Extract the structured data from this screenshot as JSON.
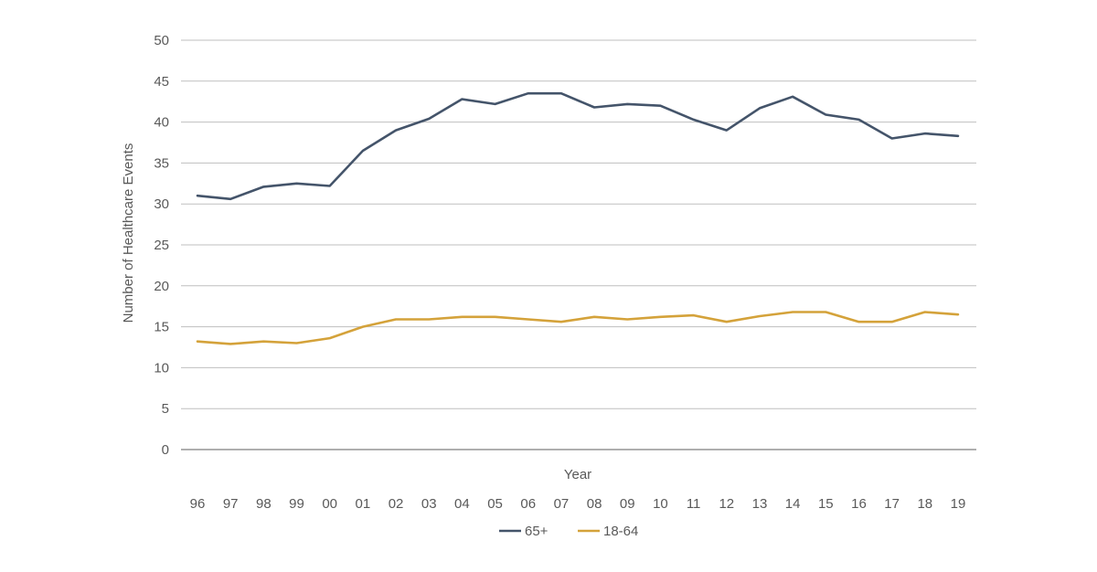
{
  "chart_data": {
    "type": "line",
    "title": "",
    "xlabel": "Year",
    "ylabel": "Number of Healthcare Events",
    "ylim": [
      0,
      50
    ],
    "yticks": [
      0,
      5,
      10,
      15,
      20,
      25,
      30,
      35,
      40,
      45,
      50
    ],
    "categories": [
      "96",
      "97",
      "98",
      "99",
      "00",
      "01",
      "02",
      "03",
      "04",
      "05",
      "06",
      "07",
      "08",
      "09",
      "10",
      "11",
      "12",
      "13",
      "14",
      "15",
      "16",
      "17",
      "18",
      "19"
    ],
    "series": [
      {
        "name": "65+",
        "color": "#44546a",
        "values": [
          31.0,
          30.6,
          32.1,
          32.5,
          32.2,
          36.5,
          39.0,
          40.4,
          42.8,
          42.2,
          43.5,
          43.5,
          41.8,
          42.2,
          42.0,
          40.3,
          39.0,
          41.7,
          43.1,
          40.9,
          40.3,
          38.0,
          38.6,
          38.3
        ]
      },
      {
        "name": "18-64",
        "color": "#d4a23a",
        "values": [
          13.2,
          12.9,
          13.2,
          13.0,
          13.6,
          15.0,
          15.9,
          15.9,
          16.2,
          16.2,
          15.9,
          15.6,
          16.2,
          15.9,
          16.2,
          16.4,
          15.6,
          16.3,
          16.8,
          16.8,
          15.6,
          15.6,
          16.8,
          16.5
        ]
      }
    ],
    "legend_position": "bottom-center",
    "grid": true
  }
}
